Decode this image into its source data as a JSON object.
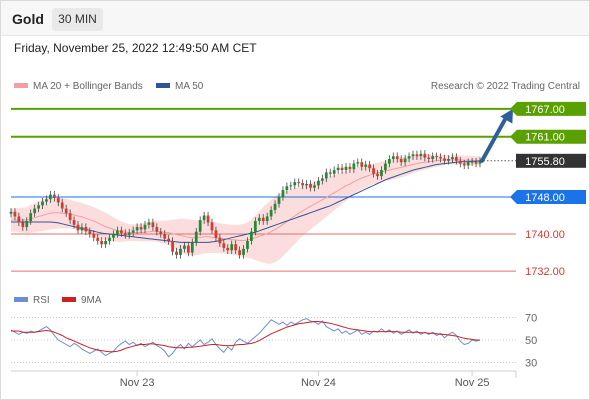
{
  "header": {
    "symbol": "Gold",
    "timeframe": "30 MIN"
  },
  "timestamp": "Friday, November 25, 2022 12:49:50 AM CET",
  "legend": {
    "bb": "MA 20 + Bollinger Bands",
    "ma50": "MA 50",
    "credit": "Research © 2022 Trading Central",
    "rsi": "RSI",
    "ma9": "9MA"
  },
  "colors": {
    "up": "#1e8c35",
    "down": "#d63a2f",
    "resistance": "#5aa000",
    "pivot": "#1a73e8",
    "support": "#e07070",
    "current": "#333333",
    "bb_fill": "#fbd4d4",
    "ma20": "#f0a0a0",
    "ma50": "#2f5596",
    "arrow": "#2f5e9c",
    "rsi": "#6b8ed6",
    "ma9": "#cc2222"
  },
  "chart_data": [
    {
      "type": "candlestick",
      "title": "Gold",
      "timeframe": "30 MIN",
      "x_tick_labels": [
        "Nov 23",
        "Nov 24",
        "Nov 25"
      ],
      "ylim": [
        1729,
        1770
      ],
      "levels": [
        {
          "value": 1767.0,
          "label": "1767.00",
          "kind": "resistance"
        },
        {
          "value": 1761.0,
          "label": "1761.00",
          "kind": "resistance"
        },
        {
          "value": 1755.8,
          "label": "1755.80",
          "kind": "current"
        },
        {
          "value": 1748.0,
          "label": "1748.00",
          "kind": "pivot"
        },
        {
          "value": 1740.0,
          "label": "1740.00",
          "kind": "support"
        },
        {
          "value": 1732.0,
          "label": "1732.00",
          "kind": "support"
        }
      ],
      "close": [
        1744.8,
        1743.8,
        1742.5,
        1741.5,
        1742.8,
        1744.5,
        1745.5,
        1746.2,
        1747,
        1747.5,
        1748.5,
        1747.8,
        1746.8,
        1745.5,
        1744.5,
        1743,
        1742,
        1740.8,
        1741.5,
        1740.6,
        1740,
        1739.2,
        1738.5,
        1737.8,
        1738.5,
        1739.2,
        1740,
        1740.8,
        1740.2,
        1739.8,
        1740.3,
        1740.8,
        1741.5,
        1741,
        1742,
        1742.5,
        1741.5,
        1740.5,
        1740,
        1739,
        1738.5,
        1736.2,
        1735.5,
        1736.8,
        1737.5,
        1736,
        1738.2,
        1740.5,
        1743,
        1744,
        1742.5,
        1740.8,
        1739.2,
        1738,
        1737,
        1736.5,
        1737.8,
        1736.5,
        1735.5,
        1736.8,
        1738.5,
        1740.5,
        1742.8,
        1743.5,
        1742.8,
        1743.8,
        1745.2,
        1746.5,
        1748,
        1749.5,
        1750.3,
        1750.5,
        1751.2,
        1751,
        1750.5,
        1750.8,
        1750,
        1750.5,
        1751.5,
        1752,
        1753.3,
        1753,
        1753.8,
        1754.3,
        1753.8,
        1754.5,
        1754,
        1755.2,
        1755.5,
        1754.5,
        1755,
        1754.2,
        1753,
        1752.5,
        1753.8,
        1755.2,
        1756.2,
        1756.8,
        1756.2,
        1755.5,
        1756.3,
        1756.8,
        1757.2,
        1756.8,
        1757.3,
        1756.5,
        1756.2,
        1756.8,
        1756.6,
        1756.3,
        1755.8,
        1756.2,
        1756.6,
        1755.8,
        1755.2,
        1754.8,
        1755.5,
        1755.6,
        1755.2,
        1755.8
      ],
      "ma20": [
        1743,
        1743,
        1743,
        1743,
        1743,
        1743.3,
        1743.5,
        1743.8,
        1744,
        1744.3,
        1744.5,
        1744.6,
        1744.6,
        1744.5,
        1744.4,
        1744.3,
        1744.1,
        1743.9,
        1743.7,
        1743.4,
        1743.1,
        1742.8,
        1742.4,
        1742,
        1741.6,
        1741.3,
        1741,
        1740.7,
        1740.5,
        1740.4,
        1740.3,
        1740.3,
        1740.3,
        1740.3,
        1740.4,
        1740.5,
        1740.6,
        1740.6,
        1740.5,
        1740.4,
        1740.3,
        1740.1,
        1739.9,
        1739.7,
        1739.5,
        1739.3,
        1739.2,
        1739.2,
        1739.3,
        1739.4,
        1739.4,
        1739.3,
        1739.2,
        1739.1,
        1739,
        1738.9,
        1738.8,
        1738.7,
        1738.6,
        1738.6,
        1738.7,
        1738.9,
        1739.2,
        1739.5,
        1739.8,
        1740.1,
        1740.5,
        1741,
        1741.5,
        1742.1,
        1742.7,
        1743.3,
        1743.9,
        1744.5,
        1745,
        1745.5,
        1746,
        1746.5,
        1746.9,
        1747.4,
        1747.9,
        1748.4,
        1748.9,
        1749.4,
        1749.9,
        1750.4,
        1750.8,
        1751.3,
        1751.7,
        1752.1,
        1752.4,
        1752.7,
        1753,
        1753.2,
        1753.4,
        1753.6,
        1753.8,
        1754,
        1754.2,
        1754.4,
        1754.6,
        1754.8,
        1755,
        1755.2,
        1755.4,
        1755.5,
        1755.6,
        1755.7,
        1755.8,
        1755.9,
        1756,
        1756,
        1756,
        1756,
        1756,
        1755.9,
        1755.9,
        1755.9,
        1755.8,
        1755.8
      ],
      "bb_width": [
        2.5,
        2.5,
        2.6,
        2.7,
        2.8,
        3.0,
        3.1,
        3.2,
        3.4,
        3.5,
        3.5,
        3.5,
        3.4,
        3.3,
        3.2,
        3.1,
        3.0,
        3.0,
        3.0,
        3.0,
        3.0,
        3.0,
        3.0,
        3.0,
        3.0,
        2.8,
        2.6,
        2.4,
        2.2,
        2.0,
        1.8,
        1.8,
        1.8,
        1.9,
        2.0,
        2.1,
        2.2,
        2.3,
        2.4,
        2.5,
        2.7,
        3.0,
        3.3,
        3.6,
        3.8,
        3.9,
        3.9,
        3.8,
        3.7,
        3.6,
        3.5,
        3.4,
        3.3,
        3.2,
        3.2,
        3.2,
        3.2,
        3.3,
        3.4,
        3.6,
        3.8,
        4.2,
        4.8,
        5.4,
        6.0,
        6.5,
        6.9,
        7.1,
        7.1,
        6.9,
        6.6,
        6.3,
        6.0,
        5.7,
        5.4,
        5.2,
        5.0,
        4.8,
        4.6,
        4.4,
        4.2,
        4.0,
        3.8,
        3.6,
        3.4,
        3.2,
        3.0,
        2.8,
        2.6,
        2.5,
        2.4,
        2.3,
        2.2,
        2.2,
        2.2,
        2.2,
        2.2,
        2.2,
        2.2,
        2.2,
        2.1,
        2.0,
        1.9,
        1.8,
        1.7,
        1.6,
        1.5,
        1.4,
        1.3,
        1.2,
        1.1,
        1.0,
        1.0,
        1.0,
        1.0,
        1.0,
        1.0,
        1.0,
        1.0,
        1.0
      ],
      "ma50": [
        1742.6,
        1742.6,
        1742.6,
        1742.6,
        1742.6,
        1742.6,
        1742.6,
        1742.6,
        1742.6,
        1742.6,
        1742.6,
        1742.5,
        1742.4,
        1742.2,
        1742,
        1741.8,
        1741.6,
        1741.4,
        1741.2,
        1741,
        1740.8,
        1740.6,
        1740.4,
        1740.2,
        1740.1,
        1740,
        1739.9,
        1739.8,
        1739.7,
        1739.6,
        1739.5,
        1739.4,
        1739.3,
        1739.2,
        1739.1,
        1739,
        1738.9,
        1738.8,
        1738.7,
        1738.6,
        1738.5,
        1738.4,
        1738.3,
        1738.2,
        1738.2,
        1738.2,
        1738.2,
        1738.2,
        1738.2,
        1738.2,
        1738.2,
        1738.3,
        1738.4,
        1738.6,
        1738.8,
        1739,
        1739.2,
        1739.4,
        1739.6,
        1739.8,
        1740,
        1740.2,
        1740.4,
        1740.7,
        1741,
        1741.3,
        1741.6,
        1741.9,
        1742.2,
        1742.5,
        1742.8,
        1743.1,
        1743.4,
        1743.7,
        1744,
        1744.3,
        1744.6,
        1744.9,
        1745.2,
        1745.5,
        1745.8,
        1746.1,
        1746.5,
        1746.9,
        1747.3,
        1747.7,
        1748.1,
        1748.5,
        1748.9,
        1749.3,
        1749.7,
        1750.1,
        1750.5,
        1750.9,
        1751.3,
        1751.7,
        1752,
        1752.3,
        1752.6,
        1752.9,
        1753.2,
        1753.5,
        1753.8,
        1754,
        1754.2,
        1754.4,
        1754.6,
        1754.8,
        1755,
        1755.1,
        1755.2,
        1755.3,
        1755.4,
        1755.5,
        1755.6,
        1755.6,
        1755.6,
        1755.7,
        1755.7,
        1755.8
      ],
      "arrow": {
        "from": 1755.8,
        "to": 1767.0
      }
    },
    {
      "type": "line",
      "title": "RSI",
      "ylim": [
        25,
        75
      ],
      "y_ticks": [
        30,
        50,
        70
      ],
      "series": [
        {
          "name": "RSI",
          "values": [
            59,
            57,
            55,
            57,
            56,
            58,
            57,
            58,
            60,
            62,
            59,
            54,
            50,
            48,
            46,
            44,
            47,
            45,
            42,
            40,
            38,
            40,
            42,
            39,
            36,
            38,
            40,
            44,
            47,
            49,
            46,
            48,
            45,
            47,
            44,
            46,
            48,
            45,
            43,
            40,
            35,
            38,
            43,
            46,
            42,
            47,
            44,
            47,
            50,
            46,
            48,
            51,
            46,
            42,
            39,
            44,
            41,
            48,
            51,
            49,
            47,
            50,
            53,
            56,
            60,
            64,
            68,
            66,
            64,
            66,
            63,
            66,
            64,
            66,
            68,
            69,
            67,
            66,
            64,
            67,
            62,
            60,
            58,
            60,
            56,
            58,
            55,
            57,
            59,
            55,
            57,
            55,
            58,
            57,
            60,
            57,
            59,
            56,
            58,
            55,
            57,
            59,
            56,
            58,
            55,
            57,
            55,
            57,
            54,
            56,
            52,
            55,
            57,
            54,
            49,
            46,
            47,
            50,
            49,
            50
          ]
        },
        {
          "name": "9MA",
          "values": [
            58,
            58,
            58,
            57,
            57,
            57,
            57,
            57.5,
            58,
            58.5,
            58,
            57,
            55.5,
            54,
            52,
            50.5,
            49,
            47.5,
            46,
            44.5,
            43,
            42,
            41,
            40.5,
            40,
            39.5,
            39.5,
            40,
            41,
            42.5,
            43.5,
            44.5,
            45.5,
            46,
            46,
            46.5,
            46.5,
            46,
            45.5,
            45,
            44,
            43.5,
            43,
            43,
            43,
            43.5,
            43.5,
            44,
            44.5,
            45,
            45.5,
            46,
            46,
            45.5,
            45,
            45,
            45,
            45.5,
            46,
            46,
            46.5,
            47,
            48,
            49.5,
            51.5,
            53.5,
            55.5,
            57,
            58.5,
            60,
            61.5,
            62.5,
            63.5,
            64.5,
            65,
            65.5,
            66,
            66.5,
            66.5,
            66,
            65.5,
            65,
            64,
            63,
            62,
            61,
            60,
            59.5,
            59,
            58.5,
            58,
            57.5,
            57.5,
            57.5,
            57.5,
            57.5,
            57.5,
            57.5,
            57.5,
            57,
            57,
            57,
            57,
            57,
            56.5,
            56.5,
            56,
            56,
            55.5,
            55,
            55,
            54.5,
            54,
            53.5,
            52.5,
            51.5,
            51,
            50.5,
            50,
            50
          ]
        }
      ]
    }
  ]
}
